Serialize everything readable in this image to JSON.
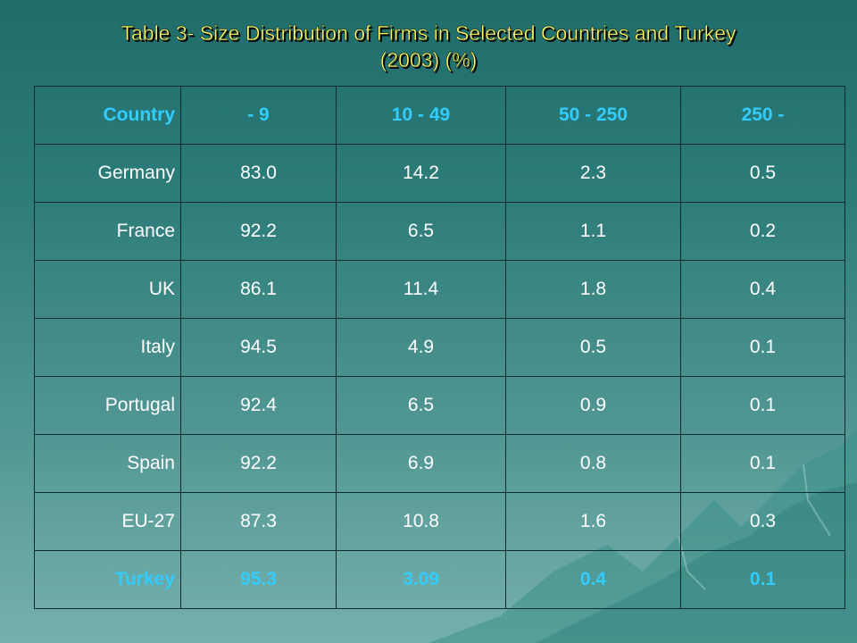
{
  "slide": {
    "title_line1": "Table 3- Size Distribution of Firms in Selected Countries and Turkey",
    "title_line2": "(2003) (%)",
    "colors": {
      "title": "#ffff66",
      "header": "#33ccff",
      "cell": "#ffffff",
      "highlight": "#33ccff",
      "border": "#0a2c2a"
    }
  },
  "table": {
    "headers": [
      "Country",
      "- 9",
      "10 - 49",
      "50 - 250",
      "250 -"
    ],
    "rows": [
      [
        "Germany",
        "83.0",
        "14.2",
        "2.3",
        "0.5"
      ],
      [
        "France",
        "92.2",
        "6.5",
        "1.1",
        "0.2"
      ],
      [
        "UK",
        "86.1",
        "11.4",
        "1.8",
        "0.4"
      ],
      [
        "Italy",
        "94.5",
        "4.9",
        "0.5",
        "0.1"
      ],
      [
        "Portugal",
        "92.4",
        "6.5",
        "0.9",
        "0.1"
      ],
      [
        "Spain",
        "92.2",
        "6.9",
        "0.8",
        "0.1"
      ],
      [
        "EU-27",
        "87.3",
        "10.8",
        "1.6",
        "0.3"
      ],
      [
        "Turkey",
        "95.3",
        "3.09",
        "0.4",
        "0.1"
      ]
    ]
  }
}
